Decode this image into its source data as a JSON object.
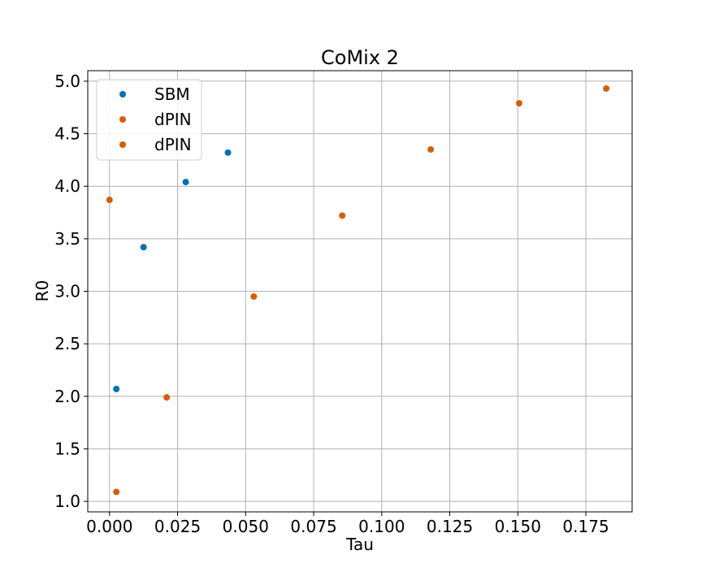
{
  "chart_data": {
    "type": "scatter",
    "title": "CoMix 2",
    "xlabel": "Tau",
    "ylabel": "R0",
    "xlim": [
      -0.008,
      0.192
    ],
    "ylim": [
      0.9,
      5.1
    ],
    "xticks": [
      0.0,
      0.025,
      0.05,
      0.075,
      0.1,
      0.125,
      0.15,
      0.175
    ],
    "xtick_labels": [
      "0.000",
      "0.025",
      "0.050",
      "0.075",
      "0.100",
      "0.125",
      "0.150",
      "0.175"
    ],
    "yticks": [
      1.0,
      1.5,
      2.0,
      2.5,
      3.0,
      3.5,
      4.0,
      4.5,
      5.0
    ],
    "ytick_labels": [
      "1.0",
      "1.5",
      "2.0",
      "2.5",
      "3.0",
      "3.5",
      "4.0",
      "4.5",
      "5.0"
    ],
    "grid": true,
    "legend_position": "top-left",
    "series": [
      {
        "name": "SBM",
        "color": "#0072b2",
        "points": [
          [
            0.0025,
            2.07
          ],
          [
            0.0125,
            3.42
          ],
          [
            0.028,
            4.04
          ],
          [
            0.0435,
            4.32
          ]
        ]
      },
      {
        "name": "dPIN",
        "color": "#d55e00",
        "points": [
          [
            0.0025,
            1.09
          ],
          [
            0.021,
            1.99
          ],
          [
            0.053,
            2.95
          ],
          [
            0.0855,
            3.72
          ],
          [
            0.118,
            4.35
          ],
          [
            0.1505,
            4.79
          ],
          [
            0.1825,
            4.93
          ]
        ]
      },
      {
        "name": "dPIN",
        "color": "#d55e00",
        "points": [
          [
            0.0,
            3.87
          ]
        ]
      }
    ]
  }
}
